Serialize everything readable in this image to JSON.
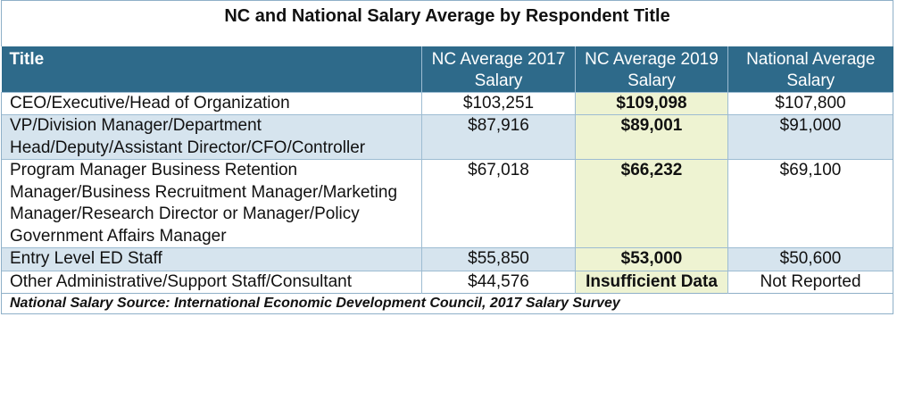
{
  "table": {
    "title": "NC and National Salary Average by Respondent Title",
    "headers": [
      "Title",
      "NC Average 2017 Salary",
      "NC Average 2019 Salary",
      "National Average Salary"
    ],
    "rows": [
      {
        "title": "CEO/Executive/Head of Organization",
        "nc2017": "$103,251",
        "nc2019": "$109,098",
        "national": "$107,800"
      },
      {
        "title": "VP/Division Manager/Department Head/Deputy/Assistant Director/CFO/Controller",
        "nc2017": "$87,916",
        "nc2019": "$89,001",
        "national": "$91,000"
      },
      {
        "title": "Program Manager Business Retention Manager/Business Recruitment Manager/Marketing Manager/Research Director or Manager/Policy Government Affairs Manager",
        "nc2017": "$67,018",
        "nc2019": "$66,232",
        "national": "$69,100"
      },
      {
        "title": "Entry Level ED Staff",
        "nc2017": "$55,850",
        "nc2019": "$53,000",
        "national": "$50,600"
      },
      {
        "title": "Other Administrative/Support Staff/Consultant",
        "nc2017": "$44,576",
        "nc2019": "Insufficient Data",
        "national": "Not Reported"
      }
    ],
    "source": "National Salary Source: International Economic Development Council, 2017 Salary Survey"
  },
  "colors": {
    "header_bg": "#2e6a8a",
    "row_shade": "#d6e4ee",
    "highlight_column": "#eef3d2"
  }
}
